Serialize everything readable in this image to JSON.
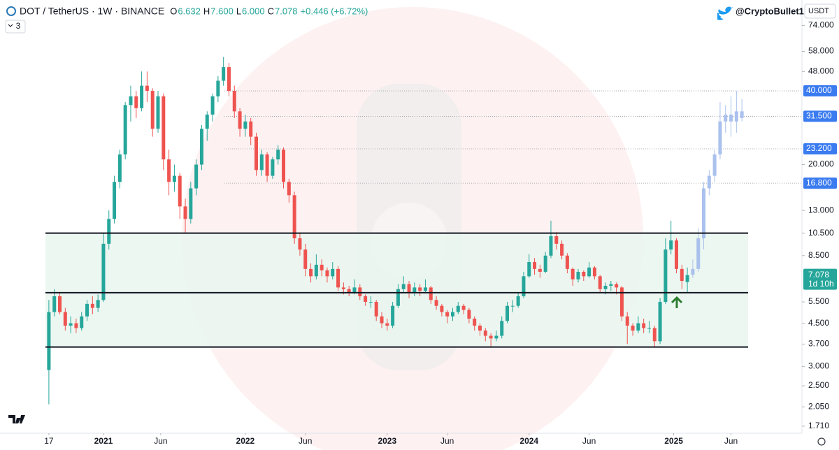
{
  "chart_data": {
    "type": "candlestick",
    "header": {
      "symbol": "DOT / TetherUS · 1W · BINANCE",
      "ohlc": [
        [
          "O",
          "6.632"
        ],
        [
          "H",
          "7.600"
        ],
        [
          "L",
          "6.000"
        ],
        [
          "C",
          "7.078"
        ]
      ],
      "change": "+0.446 (+6.72%)",
      "indicator": "3"
    },
    "watermark": "@CryptoBullet1",
    "currency": "USDT",
    "log_scale": true,
    "grid": false,
    "colors": {
      "up": "#26a69a",
      "down": "#ef5350",
      "projection": "#a9c1ec",
      "level": "#3a7bf0",
      "zone": "#e9f6ee",
      "last": "#26a69a"
    },
    "xlim": [
      -1,
      276
    ],
    "ylim": [
      1.6,
      94
    ],
    "xticks": [
      {
        "value": 0,
        "label": "17"
      },
      {
        "value": 20,
        "label": "2021"
      },
      {
        "value": 41,
        "label": "Jun"
      },
      {
        "value": 72,
        "label": "2022"
      },
      {
        "value": 94,
        "label": "Jun"
      },
      {
        "value": 124,
        "label": "2023"
      },
      {
        "value": 146,
        "label": "Jun"
      },
      {
        "value": 176,
        "label": "2024"
      },
      {
        "value": 198,
        "label": "Jun"
      },
      {
        "value": 229,
        "label": "2025"
      },
      {
        "value": 250,
        "label": "Jun"
      }
    ],
    "yticks": [
      {
        "value": 74,
        "label": "74.000"
      },
      {
        "value": 58,
        "label": "58.000"
      },
      {
        "value": 48,
        "label": "48.000"
      },
      {
        "value": 20,
        "label": "20.000"
      },
      {
        "value": 13,
        "label": "13.000"
      },
      {
        "value": 10.5,
        "label": "10.500"
      },
      {
        "value": 8.5,
        "label": "8.500"
      },
      {
        "value": 5.5,
        "label": "5.500"
      },
      {
        "value": 4.5,
        "label": "4.500"
      },
      {
        "value": 3.7,
        "label": "3.700"
      },
      {
        "value": 3.0,
        "label": "3.000"
      },
      {
        "value": 2.5,
        "label": "2.500"
      },
      {
        "value": 2.05,
        "label": "2.050"
      },
      {
        "value": 1.71,
        "label": "1.710"
      }
    ],
    "levels": [
      {
        "value": 40,
        "label": "40.000"
      },
      {
        "value": 31.5,
        "label": "31.500"
      },
      {
        "value": 23.2,
        "label": "23.200"
      },
      {
        "value": 16.8,
        "label": "16.800"
      }
    ],
    "zone_lines": [
      10.5,
      6.0,
      3.6
    ],
    "last_price": {
      "value": 7.078,
      "label": "7.078"
    },
    "countdown": "1d 10h",
    "candles": [
      [
        0,
        2.9,
        5.6,
        2.1,
        5.0
      ],
      [
        2,
        5.0,
        6.2,
        4.8,
        5.8
      ],
      [
        4,
        5.8,
        6.0,
        4.9,
        5.0
      ],
      [
        6,
        5.0,
        5.2,
        4.2,
        4.4
      ],
      [
        8,
        4.4,
        4.8,
        4.1,
        4.5
      ],
      [
        10,
        4.5,
        4.7,
        4.1,
        4.3
      ],
      [
        12,
        4.3,
        5.0,
        4.2,
        4.8
      ],
      [
        14,
        4.8,
        5.6,
        4.6,
        5.4
      ],
      [
        16,
        5.4,
        5.8,
        4.9,
        5.2
      ],
      [
        18,
        5.2,
        5.9,
        5.0,
        5.6
      ],
      [
        20,
        5.6,
        10.5,
        5.5,
        9.5
      ],
      [
        22,
        9.5,
        13.0,
        9.0,
        12.0
      ],
      [
        24,
        12.0,
        18.0,
        11.5,
        17.0
      ],
      [
        26,
        17.0,
        23.0,
        16.0,
        22.0
      ],
      [
        28,
        22.0,
        36.0,
        21.0,
        35.0
      ],
      [
        30,
        35.0,
        42.0,
        30.0,
        38.0
      ],
      [
        32,
        38.0,
        40.0,
        31.0,
        34.0
      ],
      [
        34,
        34.0,
        48.0,
        33.0,
        42.0
      ],
      [
        36,
        42.0,
        48.0,
        36.0,
        40.0
      ],
      [
        38,
        40.0,
        41.0,
        26.0,
        28.0
      ],
      [
        40,
        28.0,
        40.0,
        27.0,
        38.0
      ],
      [
        42,
        38.0,
        39.0,
        19.0,
        21.0
      ],
      [
        44,
        21.0,
        23.0,
        15.0,
        17.0
      ],
      [
        46,
        17.0,
        20.0,
        15.5,
        18.0
      ],
      [
        48,
        18.0,
        18.5,
        12.0,
        13.5
      ],
      [
        50,
        13.5,
        14.5,
        10.5,
        12.0
      ],
      [
        52,
        12.0,
        17.0,
        11.5,
        16.0
      ],
      [
        54,
        16.0,
        21.0,
        15.0,
        20.0
      ],
      [
        56,
        20.0,
        29.0,
        19.0,
        28.0
      ],
      [
        58,
        28.0,
        33.0,
        25.0,
        32.0
      ],
      [
        60,
        32.0,
        39.0,
        30.0,
        38.0
      ],
      [
        62,
        38.0,
        46.0,
        36.0,
        44.0
      ],
      [
        64,
        44.0,
        55.0,
        42.0,
        50.0
      ],
      [
        66,
        50.0,
        52.0,
        38.0,
        40.0
      ],
      [
        68,
        40.0,
        42.0,
        31.0,
        33.0
      ],
      [
        70,
        33.0,
        34.0,
        26.0,
        28.0
      ],
      [
        72,
        28.0,
        32.0,
        26.0,
        30.0
      ],
      [
        74,
        30.0,
        31.0,
        24.0,
        26.0
      ],
      [
        76,
        26.0,
        27.0,
        18.0,
        19.0
      ],
      [
        78,
        19.0,
        23.0,
        18.0,
        22.0
      ],
      [
        80,
        22.0,
        22.5,
        17.0,
        18.0
      ],
      [
        82,
        18.0,
        21.5,
        17.5,
        21.0
      ],
      [
        84,
        21.0,
        24.0,
        20.0,
        23.0
      ],
      [
        86,
        23.0,
        23.5,
        16.0,
        17.0
      ],
      [
        88,
        17.0,
        17.5,
        14.0,
        15.0
      ],
      [
        90,
        15.0,
        15.5,
        9.5,
        10.0
      ],
      [
        92,
        10.0,
        10.5,
        8.5,
        9.0
      ],
      [
        94,
        9.0,
        9.5,
        7.0,
        7.5
      ],
      [
        96,
        7.5,
        7.9,
        6.6,
        7.0
      ],
      [
        98,
        7.0,
        8.6,
        6.8,
        7.8
      ],
      [
        100,
        7.8,
        8.2,
        7.0,
        7.4
      ],
      [
        102,
        7.4,
        7.6,
        6.6,
        7.0
      ],
      [
        104,
        7.0,
        8.0,
        6.8,
        7.5
      ],
      [
        106,
        7.5,
        7.7,
        6.1,
        6.3
      ],
      [
        108,
        6.3,
        6.6,
        5.9,
        6.2
      ],
      [
        110,
        6.2,
        6.4,
        5.8,
        6.0
      ],
      [
        112,
        6.0,
        6.8,
        5.9,
        6.3
      ],
      [
        114,
        6.3,
        6.5,
        5.6,
        5.8
      ],
      [
        116,
        5.8,
        5.9,
        5.3,
        5.5
      ],
      [
        118,
        5.5,
        5.8,
        5.2,
        5.5
      ],
      [
        120,
        5.5,
        5.6,
        4.6,
        4.8
      ],
      [
        122,
        4.8,
        5.0,
        4.3,
        4.5
      ],
      [
        124,
        4.5,
        4.7,
        4.2,
        4.4
      ],
      [
        126,
        4.4,
        5.5,
        4.3,
        5.3
      ],
      [
        128,
        5.3,
        6.5,
        5.2,
        6.2
      ],
      [
        130,
        6.2,
        7.0,
        6.0,
        6.5
      ],
      [
        132,
        6.5,
        6.7,
        5.7,
        6.0
      ],
      [
        134,
        6.0,
        6.6,
        5.8,
        6.3
      ],
      [
        136,
        6.3,
        6.5,
        5.8,
        6.1
      ],
      [
        138,
        6.1,
        6.8,
        6.0,
        6.3
      ],
      [
        140,
        6.3,
        6.4,
        5.4,
        5.6
      ],
      [
        142,
        5.6,
        5.8,
        5.1,
        5.3
      ],
      [
        144,
        5.3,
        5.4,
        4.8,
        5.0
      ],
      [
        146,
        5.0,
        5.1,
        4.5,
        4.8
      ],
      [
        148,
        4.8,
        5.2,
        4.6,
        5.0
      ],
      [
        150,
        5.0,
        5.5,
        4.9,
        5.3
      ],
      [
        152,
        5.3,
        5.4,
        4.9,
        5.1
      ],
      [
        154,
        5.1,
        5.2,
        4.5,
        4.7
      ],
      [
        156,
        4.7,
        4.8,
        4.2,
        4.4
      ],
      [
        158,
        4.4,
        4.5,
        4.0,
        4.2
      ],
      [
        160,
        4.2,
        4.3,
        3.8,
        4.0
      ],
      [
        162,
        4.0,
        4.1,
        3.6,
        3.9
      ],
      [
        164,
        3.9,
        4.2,
        3.8,
        4.0
      ],
      [
        166,
        4.0,
        4.8,
        3.9,
        4.6
      ],
      [
        168,
        4.6,
        5.5,
        4.5,
        5.3
      ],
      [
        170,
        5.3,
        5.6,
        5.0,
        5.3
      ],
      [
        172,
        5.3,
        6.0,
        5.2,
        5.8
      ],
      [
        174,
        5.8,
        7.3,
        5.7,
        7.0
      ],
      [
        176,
        7.0,
        8.6,
        6.9,
        8.0
      ],
      [
        178,
        8.0,
        8.3,
        7.1,
        7.5
      ],
      [
        180,
        7.5,
        7.8,
        6.9,
        7.3
      ],
      [
        182,
        7.3,
        8.8,
        7.2,
        8.5
      ],
      [
        184,
        8.5,
        11.8,
        8.3,
        10.2
      ],
      [
        186,
        10.2,
        10.6,
        9.0,
        9.5
      ],
      [
        188,
        9.5,
        9.8,
        8.2,
        8.5
      ],
      [
        190,
        8.5,
        8.7,
        7.2,
        7.5
      ],
      [
        192,
        7.5,
        7.6,
        6.4,
        6.8
      ],
      [
        194,
        6.8,
        7.5,
        6.6,
        7.3
      ],
      [
        196,
        7.3,
        7.4,
        6.7,
        7.0
      ],
      [
        198,
        7.0,
        8.0,
        6.9,
        7.6
      ],
      [
        200,
        7.6,
        7.7,
        6.8,
        7.0
      ],
      [
        202,
        7.0,
        7.1,
        6.0,
        6.2
      ],
      [
        204,
        6.2,
        6.6,
        5.9,
        6.4
      ],
      [
        206,
        6.4,
        6.7,
        6.1,
        6.5
      ],
      [
        208,
        6.5,
        6.6,
        5.9,
        6.3
      ],
      [
        210,
        6.3,
        6.4,
        4.6,
        4.8
      ],
      [
        212,
        4.8,
        5.0,
        3.7,
        4.4
      ],
      [
        214,
        4.4,
        4.5,
        4.0,
        4.2
      ],
      [
        216,
        4.2,
        4.8,
        4.1,
        4.5
      ],
      [
        218,
        4.5,
        4.7,
        4.1,
        4.3
      ],
      [
        220,
        4.3,
        4.6,
        4.1,
        4.3
      ],
      [
        222,
        4.3,
        4.4,
        3.6,
        3.8
      ],
      [
        224,
        3.8,
        5.7,
        3.7,
        5.5
      ],
      [
        226,
        5.5,
        10.0,
        5.4,
        9.0
      ],
      [
        228,
        9.0,
        11.8,
        8.6,
        9.8
      ],
      [
        230,
        9.8,
        10.0,
        7.2,
        7.5
      ],
      [
        232,
        7.5,
        7.8,
        6.2,
        6.7
      ],
      [
        234,
        6.632,
        7.6,
        6.0,
        7.078
      ]
    ],
    "projection": [
      [
        236,
        7.1,
        8.2,
        6.9,
        7.5
      ],
      [
        238,
        7.5,
        11,
        7.3,
        10
      ],
      [
        240,
        10,
        17,
        9,
        16
      ],
      [
        242,
        16,
        19,
        15,
        18
      ],
      [
        244,
        18,
        23,
        17,
        22
      ],
      [
        246,
        22,
        36,
        21,
        30
      ],
      [
        248,
        30,
        35,
        27,
        32
      ],
      [
        250,
        32,
        38,
        26,
        30
      ],
      [
        252,
        30,
        40,
        27,
        33
      ],
      [
        254,
        33,
        37,
        30,
        31
      ]
    ]
  }
}
